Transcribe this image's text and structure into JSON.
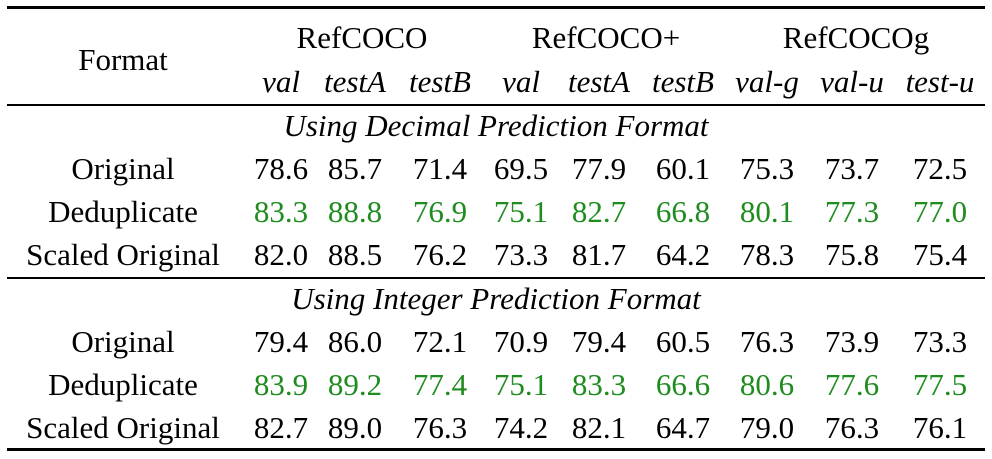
{
  "header": {
    "format_label": "Format",
    "groups": [
      "RefCOCO",
      "RefCOCO+",
      "RefCOCOg"
    ],
    "splits": [
      "val",
      "testA",
      "testB",
      "val",
      "testA",
      "testB",
      "val-g",
      "val-u",
      "test-u"
    ]
  },
  "sections": [
    {
      "title": "Using Decimal Prediction Format",
      "rows": [
        {
          "label": "Original",
          "values": [
            "78.6",
            "85.7",
            "71.4",
            "69.5",
            "77.9",
            "60.1",
            "75.3",
            "73.7",
            "72.5"
          ],
          "highlight": false
        },
        {
          "label": "Deduplicate",
          "values": [
            "83.3",
            "88.8",
            "76.9",
            "75.1",
            "82.7",
            "66.8",
            "80.1",
            "77.3",
            "77.0"
          ],
          "highlight": true
        },
        {
          "label": "Scaled Original",
          "values": [
            "82.0",
            "88.5",
            "76.2",
            "73.3",
            "81.7",
            "64.2",
            "78.3",
            "75.8",
            "75.4"
          ],
          "highlight": false
        }
      ]
    },
    {
      "title": "Using Integer Prediction Format",
      "rows": [
        {
          "label": "Original",
          "values": [
            "79.4",
            "86.0",
            "72.1",
            "70.9",
            "79.4",
            "60.5",
            "76.3",
            "73.9",
            "73.3"
          ],
          "highlight": false
        },
        {
          "label": "Deduplicate",
          "values": [
            "83.9",
            "89.2",
            "77.4",
            "75.1",
            "83.3",
            "66.6",
            "80.6",
            "77.6",
            "77.5"
          ],
          "highlight": true
        },
        {
          "label": "Scaled Original",
          "values": [
            "82.7",
            "89.0",
            "76.3",
            "74.2",
            "82.1",
            "64.7",
            "79.0",
            "76.3",
            "76.1"
          ],
          "highlight": false
        }
      ]
    }
  ],
  "colors": {
    "highlight": "#1f8c1f",
    "text": "#000000"
  }
}
